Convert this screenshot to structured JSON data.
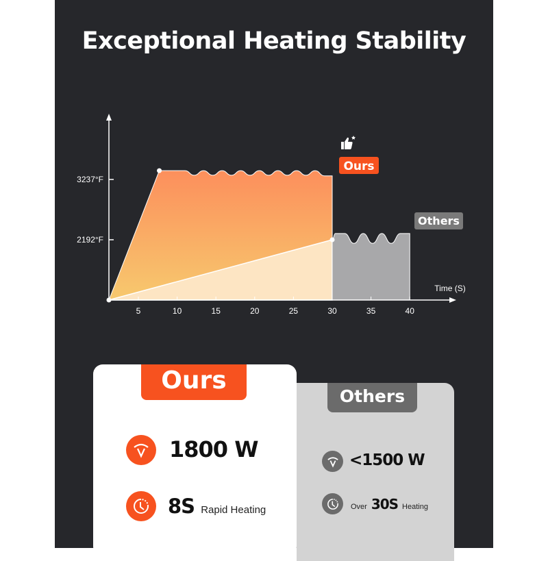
{
  "title": "Exceptional Heating Stability",
  "colors": {
    "background": "#26272b",
    "ours": "#f7521f",
    "others": "#6b6b6b",
    "others_fill": "#a8a8aa",
    "ours_fill_top": "#fc8f5c",
    "ours_fill_bottom": "#f7c56a"
  },
  "chart_data": {
    "type": "area",
    "xlabel": "Time (S)",
    "ylabel": "",
    "x_ticks": [
      5,
      10,
      15,
      20,
      25,
      30,
      35,
      40
    ],
    "y_ticks": [
      {
        "value": 2192,
        "label": "2192°F"
      },
      {
        "value": 3237,
        "label": "3237°F"
      }
    ],
    "xlim": [
      0,
      40
    ],
    "grid": false,
    "series": [
      {
        "name": "Ours",
        "color": "#f7521f",
        "points": [
          [
            1.2,
            0
          ],
          [
            7.7,
            3390
          ],
          [
            11,
            3390
          ],
          [
            12.2,
            3310
          ],
          [
            13.4,
            3390
          ],
          [
            14.6,
            3310
          ],
          [
            15.8,
            3390
          ],
          [
            17,
            3310
          ],
          [
            18.2,
            3390
          ],
          [
            19.4,
            3310
          ],
          [
            20.6,
            3390
          ],
          [
            21.8,
            3310
          ],
          [
            23,
            3390
          ],
          [
            24.2,
            3310
          ],
          [
            25.4,
            3390
          ],
          [
            26.6,
            3310
          ],
          [
            27.8,
            3390
          ],
          [
            29,
            3300
          ],
          [
            30,
            3300
          ],
          [
            30,
            0
          ]
        ]
      },
      {
        "name": "Others",
        "color": "#6b6b6b",
        "points": [
          [
            1.2,
            0
          ],
          [
            30,
            2192
          ],
          [
            30.4,
            2300
          ],
          [
            31.6,
            2300
          ],
          [
            32.8,
            2060
          ],
          [
            34,
            2300
          ],
          [
            35.2,
            2060
          ],
          [
            36.4,
            2300
          ],
          [
            37.6,
            2060
          ],
          [
            38.8,
            2300
          ],
          [
            40,
            2300
          ],
          [
            40,
            0
          ]
        ]
      }
    ],
    "labels": {
      "ours": "Ours",
      "others": "Others"
    }
  },
  "ours_card": {
    "label": "Ours",
    "power": "1800 W",
    "time_value": "8S",
    "time_suffix": "Rapid Heating"
  },
  "others_card": {
    "label": "Others",
    "power": "<1500 W",
    "time_prefix": "Over",
    "time_value": "30S",
    "time_suffix": "Heating"
  },
  "icons": {
    "badge": "thumbs-up-star-icon",
    "power": "power-arc-icon",
    "time": "clock-icon"
  }
}
